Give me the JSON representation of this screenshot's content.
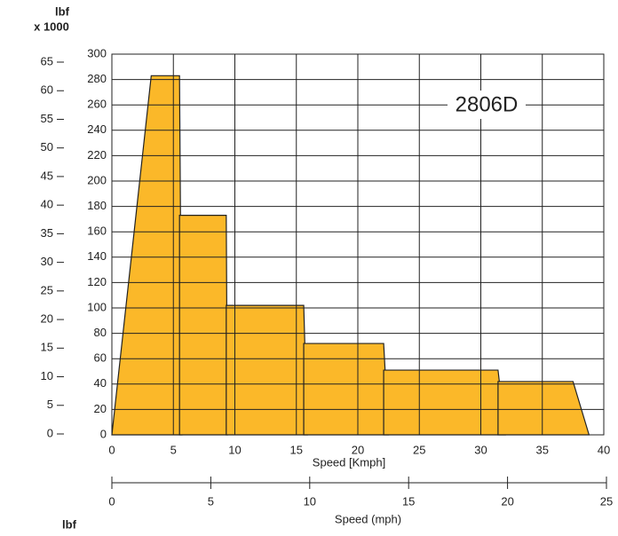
{
  "chart_data": {
    "type": "area",
    "annotation": "2806D",
    "x_label": "Speed [Kmph]",
    "x2_label": "Speed (mph)",
    "y2_unit": "lbf",
    "y2_unit_scale": "x 1000",
    "bottom_unit": "lbf",
    "color": "#fbb829",
    "xlim": [
      0,
      40
    ],
    "xticks": [
      0,
      5,
      10,
      15,
      20,
      25,
      30,
      35,
      40
    ],
    "ylim": [
      0,
      300
    ],
    "yticks": [
      0,
      20,
      40,
      60,
      80,
      100,
      120,
      140,
      160,
      180,
      200,
      220,
      240,
      260,
      280,
      300
    ],
    "y2lim": [
      0,
      65
    ],
    "y2ticks": [
      0,
      5,
      10,
      15,
      20,
      25,
      30,
      35,
      40,
      45,
      50,
      55,
      60,
      65
    ],
    "x2lim": [
      0,
      25
    ],
    "x2ticks": [
      0,
      5,
      10,
      15,
      20,
      25
    ],
    "grid": true,
    "series": [
      {
        "x": [
          0,
          3.2,
          5.5,
          5.7
        ],
        "values": [
          0,
          283,
          283,
          0
        ]
      },
      {
        "x": [
          5.5,
          9.3,
          9.4
        ],
        "values": [
          173,
          173,
          0
        ]
      },
      {
        "x": [
          9.3,
          15.6,
          15.9
        ],
        "values": [
          102,
          102,
          0
        ]
      },
      {
        "x": [
          15.6,
          22.1,
          22.5
        ],
        "values": [
          72,
          72,
          0
        ]
      },
      {
        "x": [
          22.1,
          31.4,
          32
        ],
        "values": [
          51,
          51,
          0
        ]
      },
      {
        "x": [
          31.4,
          37.5,
          38.8
        ],
        "values": [
          42,
          42,
          0
        ]
      }
    ]
  }
}
